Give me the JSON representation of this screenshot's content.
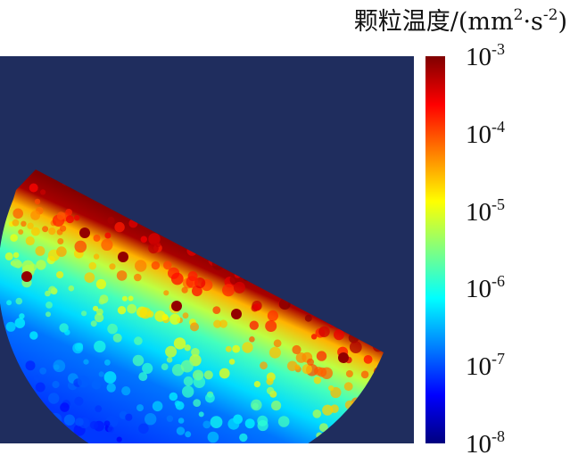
{
  "chart_data": {
    "type": "heatmap",
    "title": "",
    "colorbar": {
      "label": "颗粒温度/(mm²·s⁻²)",
      "label_parts": {
        "prefix": "颗粒温度/(mm",
        "exp1": "2",
        "mid": "·s",
        "exp2": "-2",
        "suffix": ")"
      },
      "scale": "log",
      "range": [
        1e-08,
        0.001
      ],
      "ticks": [
        {
          "base": "10",
          "exp": "-3",
          "value": 0.001
        },
        {
          "base": "10",
          "exp": "-4",
          "value": 0.0001
        },
        {
          "base": "10",
          "exp": "-5",
          "value": 1e-05
        },
        {
          "base": "10",
          "exp": "-6",
          "value": 1e-06
        },
        {
          "base": "10",
          "exp": "-7",
          "value": 1e-07
        },
        {
          "base": "10",
          "exp": "-8",
          "value": 1e-08
        }
      ],
      "colormap": [
        "#00007f",
        "#0000ff",
        "#0080ff",
        "#00ffff",
        "#80ff80",
        "#ffff00",
        "#ff8000",
        "#ff0000",
        "#7f0000"
      ]
    },
    "background_color": "#1f2d5e",
    "field_bands": [
      {
        "depth_fraction": 0.0,
        "log_value": -3.0
      },
      {
        "depth_fraction": 0.1,
        "log_value": -3.2
      },
      {
        "depth_fraction": 0.18,
        "log_value": -4.5
      },
      {
        "depth_fraction": 0.28,
        "log_value": -5.2
      },
      {
        "depth_fraction": 0.4,
        "log_value": -5.8
      },
      {
        "depth_fraction": 0.55,
        "log_value": -6.3
      },
      {
        "depth_fraction": 0.7,
        "log_value": -6.8
      },
      {
        "depth_fraction": 1.0,
        "log_value": -7.1
      }
    ]
  }
}
